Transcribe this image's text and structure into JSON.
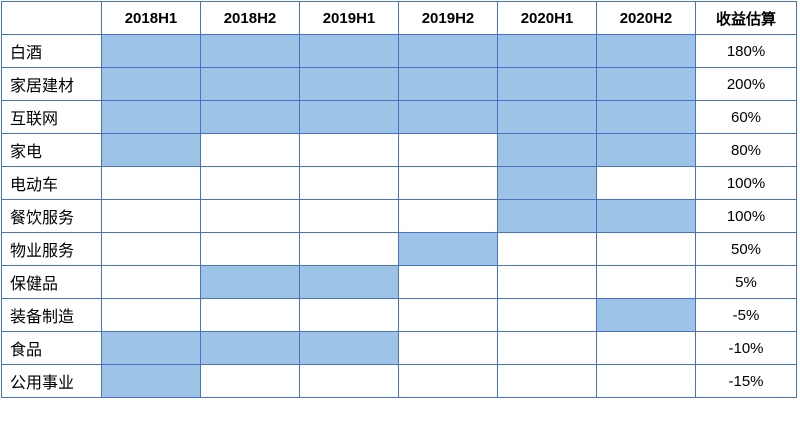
{
  "table": {
    "periods": [
      "2018H1",
      "2018H2",
      "2019H1",
      "2019H2",
      "2020H1",
      "2020H2"
    ],
    "estimate_header": "收益估算",
    "highlight_color": "#9dc3e6",
    "rows": [
      {
        "sector": "白酒",
        "cells": [
          true,
          true,
          true,
          true,
          true,
          true
        ],
        "estimate": "180%"
      },
      {
        "sector": "家居建材",
        "cells": [
          true,
          true,
          true,
          true,
          true,
          true
        ],
        "estimate": "200%"
      },
      {
        "sector": "互联网",
        "cells": [
          true,
          true,
          true,
          true,
          true,
          true
        ],
        "estimate": "60%"
      },
      {
        "sector": "家电",
        "cells": [
          true,
          false,
          false,
          false,
          true,
          true
        ],
        "estimate": "80%"
      },
      {
        "sector": "电动车",
        "cells": [
          false,
          false,
          false,
          false,
          true,
          false
        ],
        "estimate": "100%"
      },
      {
        "sector": "餐饮服务",
        "cells": [
          false,
          false,
          false,
          false,
          true,
          true
        ],
        "estimate": "100%"
      },
      {
        "sector": "物业服务",
        "cells": [
          false,
          false,
          false,
          true,
          false,
          false
        ],
        "estimate": "50%"
      },
      {
        "sector": "保健品",
        "cells": [
          false,
          true,
          true,
          false,
          false,
          false
        ],
        "estimate": "5%"
      },
      {
        "sector": "装备制造",
        "cells": [
          false,
          false,
          false,
          false,
          false,
          true
        ],
        "estimate": "-5%"
      },
      {
        "sector": "食品",
        "cells": [
          true,
          true,
          true,
          false,
          false,
          false
        ],
        "estimate": "-10%"
      },
      {
        "sector": "公用事业",
        "cells": [
          true,
          false,
          false,
          false,
          false,
          false
        ],
        "estimate": "-15%"
      }
    ]
  }
}
